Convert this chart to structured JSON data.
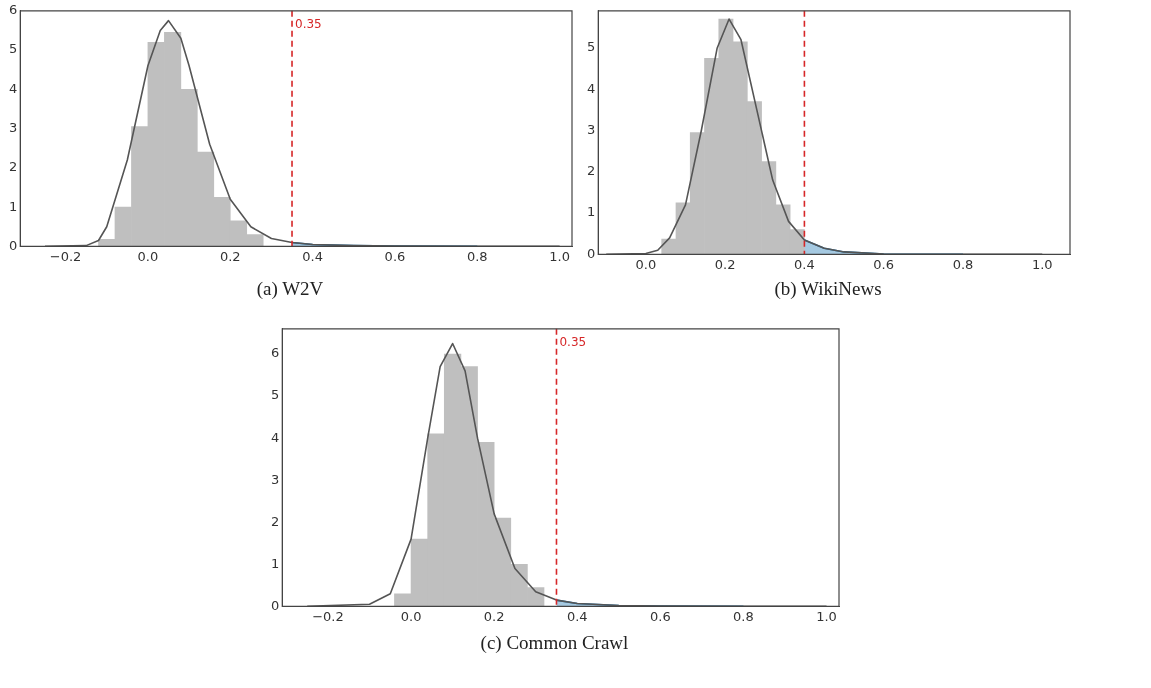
{
  "chart_data": [
    {
      "type": "histogram",
      "title": "(a) W2V",
      "bins": [
        -0.12,
        -0.08,
        -0.04,
        0,
        0.04,
        0.08,
        0.12,
        0.16,
        0.2,
        0.24,
        0.28
      ],
      "values": [
        0.18,
        1.0,
        3.05,
        5.2,
        5.45,
        4.0,
        2.4,
        1.25,
        0.65,
        0.3
      ],
      "color": "#bfbfbf",
      "series": [
        {
          "type": "line",
          "color": "#555555",
          "x": [
            -0.25,
            -0.15,
            -0.12,
            -0.1,
            -0.05,
            0,
            0.03,
            0.05,
            0.08,
            0.1,
            0.15,
            0.2,
            0.25,
            0.3,
            0.35,
            0.4,
            0.5,
            0.6,
            0.8,
            1.0
          ],
          "values": [
            0,
            0.02,
            0.15,
            0.5,
            2.2,
            4.6,
            5.5,
            5.75,
            5.3,
            4.6,
            2.6,
            1.2,
            0.5,
            0.2,
            0.1,
            0.05,
            0.02,
            0.01,
            0,
            0
          ]
        },
        {
          "type": "area",
          "color": "#1f77b4",
          "x": [
            0.35,
            0.4,
            0.5,
            0.6,
            0.8
          ],
          "values": [
            0.1,
            0.05,
            0.02,
            0.01,
            0
          ]
        }
      ],
      "xlim": [
        -0.31,
        1.03
      ],
      "ylim": [
        0,
        6
      ],
      "xticks": [
        {
          "value": -0.2,
          "label": "−0.2"
        },
        {
          "value": 0,
          "label": "0.0"
        },
        {
          "value": 0.2,
          "label": "0.2"
        },
        {
          "value": 0.4,
          "label": "0.4"
        },
        {
          "value": 0.6,
          "label": "0.6"
        },
        {
          "value": 0.8,
          "label": "0.8"
        },
        {
          "value": 1,
          "label": "1.0"
        }
      ],
      "yticks": [
        0,
        1,
        2,
        3,
        4,
        5,
        6
      ],
      "ref_lines": [
        {
          "axis": "x",
          "value": 0.35,
          "label": "0.35",
          "color": "#d62728",
          "line_style": "dashed"
        }
      ]
    },
    {
      "type": "histogram",
      "title": "(b) WikiNews",
      "bins": [
        0.04,
        0.076,
        0.112,
        0.148,
        0.184,
        0.22,
        0.256,
        0.292,
        0.328,
        0.364,
        0.4
      ],
      "values": [
        0.37,
        1.25,
        2.95,
        4.75,
        5.7,
        5.15,
        3.7,
        2.25,
        1.2,
        0.6
      ],
      "color": "#bfbfbf",
      "series": [
        {
          "type": "line",
          "color": "#555555",
          "x": [
            -0.1,
            0,
            0.03,
            0.06,
            0.1,
            0.14,
            0.18,
            0.21,
            0.24,
            0.28,
            0.32,
            0.36,
            0.4,
            0.45,
            0.5,
            0.6,
            0.8,
            1.0
          ],
          "values": [
            0,
            0.02,
            0.1,
            0.4,
            1.2,
            3.0,
            5.0,
            5.7,
            5.2,
            3.5,
            1.8,
            0.8,
            0.35,
            0.15,
            0.06,
            0.01,
            0,
            0
          ]
        },
        {
          "type": "area",
          "color": "#1f77b4",
          "x": [
            0.4,
            0.45,
            0.5,
            0.6,
            0.8
          ],
          "values": [
            0.35,
            0.15,
            0.06,
            0.01,
            0
          ]
        }
      ],
      "xlim": [
        -0.12,
        1.07
      ],
      "ylim": [
        0,
        5.9
      ],
      "xticks": [
        {
          "value": 0,
          "label": "0.0"
        },
        {
          "value": 0.2,
          "label": "0.2"
        },
        {
          "value": 0.4,
          "label": "0.4"
        },
        {
          "value": 0.6,
          "label": "0.6"
        },
        {
          "value": 0.8,
          "label": "0.8"
        },
        {
          "value": 1,
          "label": "1.0"
        }
      ],
      "yticks": [
        0,
        1,
        2,
        3,
        4,
        5
      ],
      "ref_lines": [
        {
          "axis": "x",
          "value": 0.4,
          "color": "#d62728",
          "line_style": "dashed"
        }
      ]
    },
    {
      "type": "histogram",
      "title": "(c) Common Crawl",
      "bins": [
        -0.04,
        0,
        0.04,
        0.08,
        0.12,
        0.16,
        0.2,
        0.24,
        0.28,
        0.32
      ],
      "values": [
        0.3,
        1.6,
        4.1,
        6.0,
        5.7,
        3.9,
        2.1,
        1.0,
        0.45
      ],
      "color": "#bfbfbf",
      "series": [
        {
          "type": "line",
          "color": "#555555",
          "x": [
            -0.25,
            -0.1,
            -0.05,
            0,
            0.04,
            0.07,
            0.1,
            0.13,
            0.16,
            0.2,
            0.25,
            0.3,
            0.35,
            0.4,
            0.5,
            0.6,
            0.8,
            1.0
          ],
          "values": [
            0,
            0.05,
            0.3,
            1.6,
            4.0,
            5.7,
            6.25,
            5.6,
            4.0,
            2.2,
            0.9,
            0.35,
            0.15,
            0.07,
            0.02,
            0.01,
            0,
            0
          ]
        },
        {
          "type": "area",
          "color": "#1f77b4",
          "x": [
            0.35,
            0.4,
            0.5,
            0.6,
            0.8
          ],
          "values": [
            0.15,
            0.07,
            0.02,
            0.01,
            0
          ]
        }
      ],
      "xlim": [
        -0.31,
        1.03
      ],
      "ylim": [
        0,
        6.6
      ],
      "xticks": [
        {
          "value": -0.2,
          "label": "−0.2"
        },
        {
          "value": 0,
          "label": "0.0"
        },
        {
          "value": 0.2,
          "label": "0.2"
        },
        {
          "value": 0.4,
          "label": "0.4"
        },
        {
          "value": 0.6,
          "label": "0.6"
        },
        {
          "value": 0.8,
          "label": "0.8"
        },
        {
          "value": 1,
          "label": "1.0"
        }
      ],
      "yticks": [
        0,
        1,
        2,
        3,
        4,
        5,
        6
      ],
      "ref_lines": [
        {
          "axis": "x",
          "value": 0.35,
          "label": "0.35",
          "color": "#d62728",
          "line_style": "dashed"
        }
      ]
    }
  ]
}
